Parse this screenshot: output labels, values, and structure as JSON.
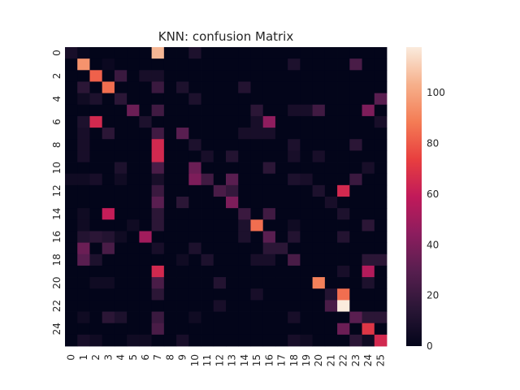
{
  "chart_data": {
    "type": "heatmap",
    "title": "KNN: confusion Matrix",
    "xlabel": "",
    "ylabel": "",
    "x_tick_labels": [
      "0",
      "1",
      "2",
      "3",
      "4",
      "5",
      "6",
      "7",
      "8",
      "9",
      "10",
      "11",
      "12",
      "13",
      "14",
      "15",
      "16",
      "17",
      "18",
      "19",
      "20",
      "21",
      "22",
      "23",
      "24",
      "25"
    ],
    "y_tick_labels": [
      "0",
      "2",
      "4",
      "6",
      "8",
      "10",
      "12",
      "14",
      "16",
      "18",
      "20",
      "22",
      "24"
    ],
    "colorbar": {
      "ticks": [
        "0",
        "20",
        "40",
        "60",
        "80",
        "100"
      ],
      "range": [
        0,
        118
      ]
    },
    "colormap": "rocket",
    "grid": false,
    "matrix": [
      [
        8,
        2,
        0,
        0,
        0,
        0,
        0,
        105,
        0,
        0,
        10,
        0,
        0,
        0,
        0,
        0,
        0,
        0,
        0,
        0,
        0,
        0,
        0,
        0,
        0,
        0
      ],
      [
        0,
        95,
        0,
        3,
        0,
        0,
        0,
        0,
        0,
        0,
        0,
        0,
        0,
        0,
        0,
        0,
        0,
        0,
        10,
        0,
        0,
        0,
        0,
        25,
        0,
        0
      ],
      [
        0,
        0,
        82,
        0,
        20,
        0,
        8,
        8,
        0,
        0,
        0,
        0,
        0,
        0,
        0,
        0,
        0,
        0,
        0,
        0,
        0,
        0,
        0,
        0,
        0,
        0
      ],
      [
        0,
        15,
        0,
        85,
        0,
        0,
        0,
        20,
        0,
        10,
        0,
        0,
        0,
        0,
        12,
        0,
        0,
        0,
        0,
        0,
        0,
        0,
        0,
        0,
        0,
        0
      ],
      [
        0,
        5,
        10,
        0,
        15,
        0,
        0,
        0,
        0,
        0,
        10,
        0,
        0,
        0,
        0,
        0,
        0,
        0,
        0,
        0,
        0,
        0,
        0,
        0,
        0,
        30
      ],
      [
        0,
        0,
        0,
        0,
        0,
        35,
        0,
        22,
        0,
        0,
        0,
        0,
        0,
        0,
        0,
        15,
        0,
        0,
        8,
        8,
        22,
        0,
        0,
        0,
        40,
        0
      ],
      [
        0,
        10,
        65,
        0,
        0,
        0,
        10,
        0,
        0,
        0,
        0,
        0,
        0,
        0,
        0,
        8,
        45,
        0,
        0,
        0,
        0,
        0,
        0,
        0,
        0,
        8
      ],
      [
        0,
        8,
        0,
        15,
        0,
        0,
        0,
        22,
        0,
        30,
        0,
        0,
        0,
        0,
        8,
        8,
        8,
        0,
        0,
        0,
        0,
        0,
        0,
        0,
        0,
        0
      ],
      [
        0,
        8,
        0,
        0,
        0,
        0,
        0,
        65,
        0,
        0,
        10,
        0,
        0,
        0,
        0,
        0,
        0,
        0,
        10,
        0,
        0,
        0,
        0,
        15,
        0,
        0
      ],
      [
        0,
        8,
        0,
        0,
        0,
        0,
        0,
        65,
        0,
        0,
        0,
        8,
        0,
        12,
        0,
        0,
        0,
        0,
        8,
        0,
        8,
        0,
        0,
        0,
        0,
        0
      ],
      [
        0,
        0,
        0,
        0,
        10,
        0,
        0,
        25,
        0,
        0,
        35,
        0,
        0,
        0,
        0,
        0,
        15,
        0,
        0,
        0,
        0,
        0,
        0,
        0,
        8,
        0
      ],
      [
        5,
        5,
        8,
        0,
        5,
        0,
        0,
        8,
        0,
        0,
        40,
        22,
        0,
        30,
        0,
        0,
        0,
        0,
        10,
        8,
        0,
        0,
        0,
        20,
        0,
        0
      ],
      [
        0,
        0,
        0,
        0,
        0,
        0,
        0,
        20,
        0,
        0,
        0,
        0,
        25,
        18,
        0,
        0,
        0,
        0,
        0,
        0,
        10,
        0,
        65,
        0,
        0,
        0
      ],
      [
        0,
        0,
        0,
        0,
        0,
        0,
        0,
        30,
        0,
        15,
        0,
        0,
        0,
        40,
        0,
        0,
        0,
        0,
        0,
        0,
        0,
        8,
        0,
        0,
        0,
        0
      ],
      [
        0,
        5,
        0,
        60,
        0,
        0,
        0,
        15,
        0,
        0,
        0,
        0,
        0,
        0,
        20,
        0,
        22,
        0,
        0,
        0,
        0,
        0,
        10,
        0,
        0,
        0
      ],
      [
        0,
        5,
        0,
        0,
        0,
        5,
        0,
        15,
        0,
        0,
        0,
        0,
        0,
        0,
        10,
        85,
        0,
        0,
        5,
        0,
        0,
        0,
        0,
        0,
        15,
        0
      ],
      [
        0,
        12,
        15,
        12,
        5,
        0,
        50,
        0,
        0,
        0,
        0,
        0,
        0,
        0,
        10,
        0,
        30,
        0,
        12,
        0,
        0,
        0,
        12,
        0,
        0,
        0
      ],
      [
        0,
        35,
        0,
        25,
        0,
        0,
        0,
        8,
        0,
        0,
        10,
        0,
        0,
        0,
        0,
        0,
        15,
        15,
        0,
        0,
        0,
        0,
        0,
        0,
        0,
        0
      ],
      [
        0,
        30,
        10,
        0,
        0,
        0,
        0,
        0,
        0,
        5,
        0,
        10,
        0,
        0,
        0,
        8,
        8,
        0,
        25,
        0,
        0,
        0,
        0,
        0,
        15,
        15
      ],
      [
        0,
        0,
        0,
        0,
        0,
        0,
        0,
        65,
        0,
        0,
        0,
        0,
        0,
        0,
        0,
        0,
        0,
        0,
        0,
        0,
        0,
        0,
        8,
        0,
        55,
        0
      ],
      [
        0,
        0,
        5,
        5,
        0,
        0,
        0,
        25,
        0,
        0,
        0,
        0,
        12,
        0,
        0,
        0,
        0,
        0,
        0,
        0,
        90,
        0,
        0,
        0,
        10,
        0
      ],
      [
        0,
        0,
        0,
        0,
        0,
        0,
        0,
        15,
        0,
        0,
        0,
        0,
        0,
        0,
        0,
        8,
        0,
        0,
        0,
        0,
        0,
        12,
        85,
        0,
        0,
        0
      ],
      [
        0,
        0,
        0,
        0,
        0,
        0,
        0,
        0,
        0,
        0,
        0,
        0,
        8,
        0,
        0,
        0,
        0,
        0,
        0,
        0,
        0,
        25,
        118,
        0,
        0,
        0
      ],
      [
        0,
        5,
        0,
        15,
        10,
        0,
        0,
        20,
        0,
        0,
        5,
        0,
        0,
        0,
        0,
        0,
        0,
        0,
        8,
        0,
        0,
        0,
        0,
        30,
        15,
        15
      ],
      [
        0,
        0,
        0,
        0,
        0,
        0,
        0,
        25,
        0,
        0,
        0,
        0,
        0,
        0,
        0,
        0,
        0,
        0,
        0,
        0,
        0,
        0,
        35,
        0,
        70,
        0
      ],
      [
        0,
        8,
        5,
        0,
        0,
        5,
        5,
        0,
        0,
        8,
        0,
        0,
        0,
        0,
        0,
        0,
        0,
        0,
        8,
        5,
        0,
        0,
        0,
        15,
        5,
        65
      ]
    ]
  }
}
